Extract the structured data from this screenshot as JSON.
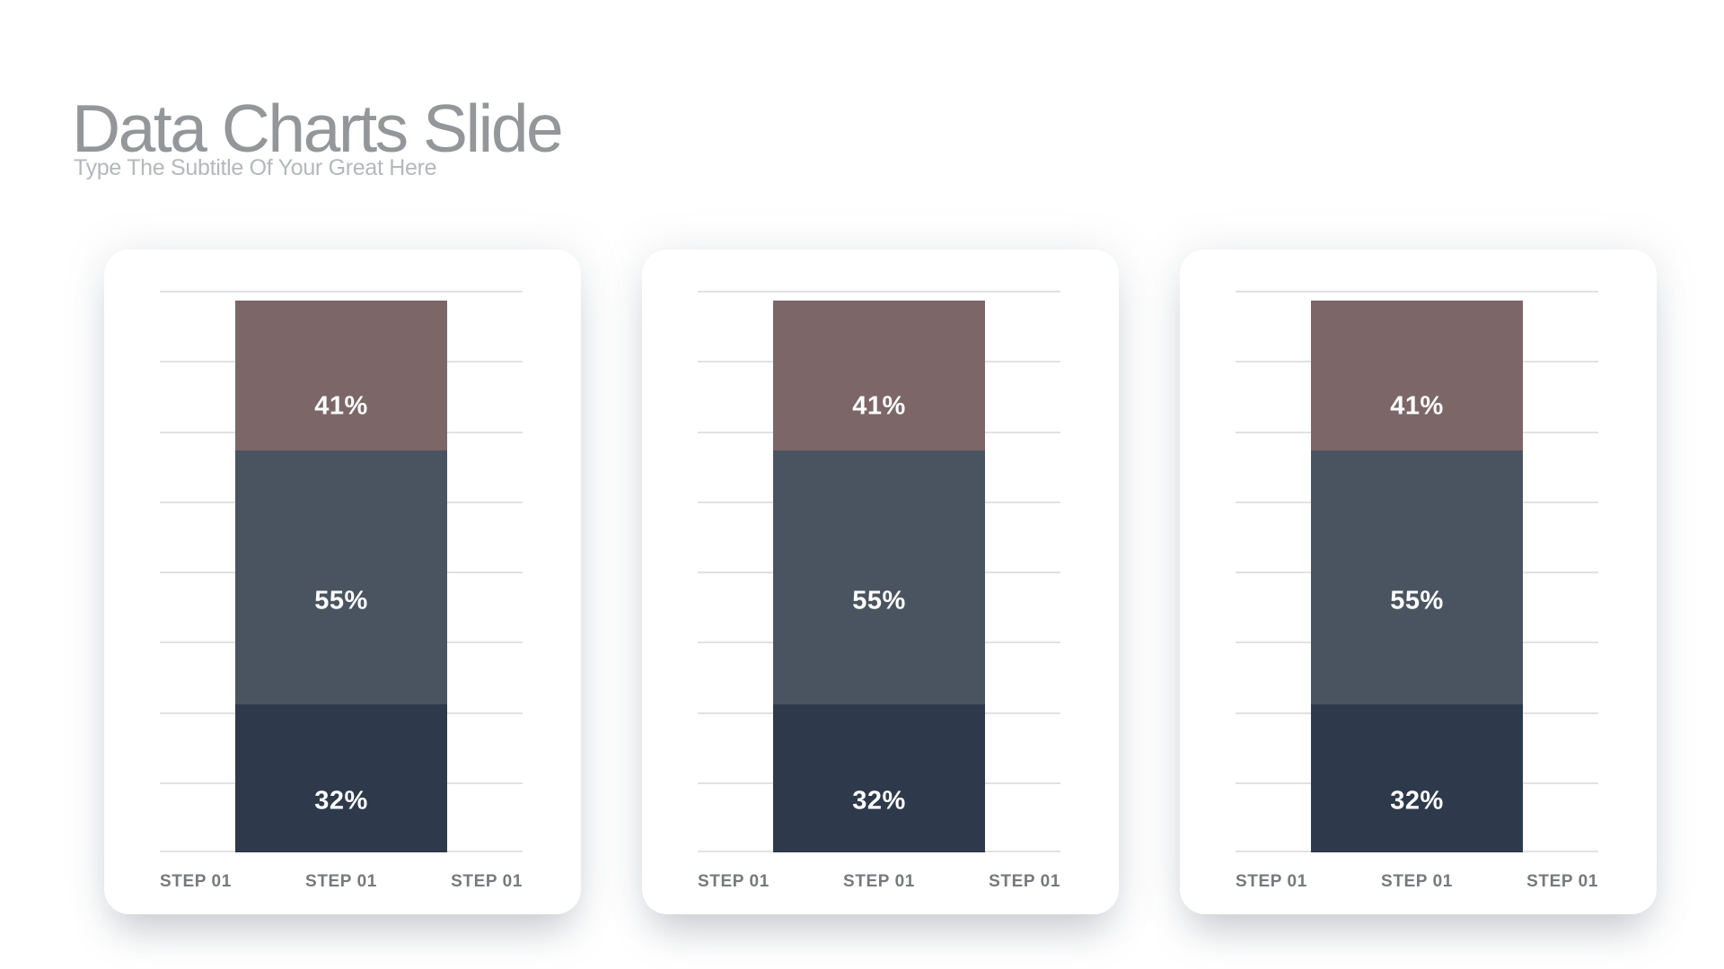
{
  "slide": {
    "title": "Data Charts Slide",
    "subtitle": "Type The Subtitle Of Your Great Here"
  },
  "palette": {
    "page_bg": "#ffffff",
    "card_bg": "#ffffff",
    "title_text": "#949699",
    "subtitle_text": "#b5b8ba",
    "gridline": "#e1e2e4",
    "axis_label": "#77797c",
    "segment_mauve": "#7c6668",
    "segment_slate": "#4a5460",
    "segment_navy": "#2e3a4b",
    "value_label_text": "#ffffff"
  },
  "chart_data": [
    {
      "type": "bar",
      "stacked": true,
      "title": "",
      "categories": [
        "STEP 01",
        "STEP 01",
        "STEP 01"
      ],
      "segments_top_to_bottom": [
        {
          "name": "top",
          "value_pct": 41,
          "label": "41%",
          "color": "#7c6668"
        },
        {
          "name": "middle",
          "value_pct": 55,
          "label": "55%",
          "color": "#4a5460"
        },
        {
          "name": "bottom",
          "value_pct": 32,
          "label": "32%",
          "color": "#2e3a4b"
        }
      ],
      "grid": true,
      "gridline_count": 9,
      "y_axis_tick_labels": false,
      "legend": false
    },
    {
      "type": "bar",
      "stacked": true,
      "title": "",
      "categories": [
        "STEP 01",
        "STEP 01",
        "STEP 01"
      ],
      "segments_top_to_bottom": [
        {
          "name": "top",
          "value_pct": 41,
          "label": "41%",
          "color": "#7c6668"
        },
        {
          "name": "middle",
          "value_pct": 55,
          "label": "55%",
          "color": "#4a5460"
        },
        {
          "name": "bottom",
          "value_pct": 32,
          "label": "32%",
          "color": "#2e3a4b"
        }
      ],
      "grid": true,
      "gridline_count": 9,
      "y_axis_tick_labels": false,
      "legend": false
    },
    {
      "type": "bar",
      "stacked": true,
      "title": "",
      "categories": [
        "STEP 01",
        "STEP 01",
        "STEP 01"
      ],
      "segments_top_to_bottom": [
        {
          "name": "top",
          "value_pct": 41,
          "label": "41%",
          "color": "#7c6668"
        },
        {
          "name": "middle",
          "value_pct": 55,
          "label": "55%",
          "color": "#4a5460"
        },
        {
          "name": "bottom",
          "value_pct": 32,
          "label": "32%",
          "color": "#2e3a4b"
        }
      ],
      "grid": true,
      "gridline_count": 9,
      "y_axis_tick_labels": false,
      "legend": false
    }
  ]
}
